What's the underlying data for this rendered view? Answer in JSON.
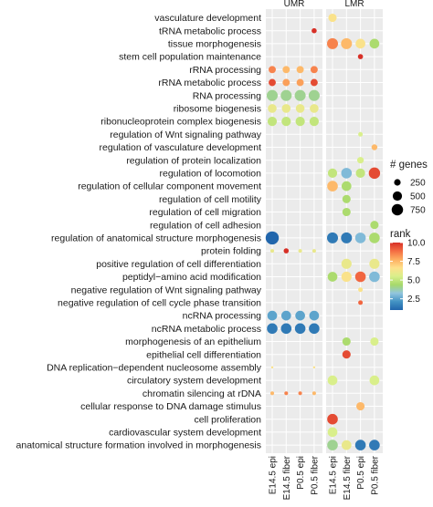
{
  "chart_data": {
    "type": "dotplot",
    "facets": [
      "UMR",
      "LMR"
    ],
    "samples": [
      "E14.5 epi",
      "E14.5 fiber",
      "P0.5 epi",
      "P0.5 fiber"
    ],
    "terms": [
      "vasculature development",
      "tRNA metabolic process",
      "tissue morphogenesis",
      "stem cell population maintenance",
      "rRNA processing",
      "rRNA metabolic process",
      "RNA processing",
      "ribosome biogenesis",
      "ribonucleoprotein complex biogenesis",
      "regulation of Wnt signaling pathway",
      "regulation of vasculature development",
      "regulation of protein localization",
      "regulation of locomotion",
      "regulation of cellular component movement",
      "regulation of cell motility",
      "regulation of cell migration",
      "regulation of cell adhesion",
      "regulation of anatomical structure morphogenesis",
      "protein folding",
      "positive regulation of cell differentiation",
      "peptidyl−amino acid modification",
      "negative regulation of Wnt signaling pathway",
      "negative regulation of cell cycle phase transition",
      "ncRNA processing",
      "ncRNA metabolic process",
      "morphogenesis of an epithelium",
      "epithelial cell differentiation",
      "DNA replication−dependent nucleosome assembly",
      "circulatory system development",
      "chromatin silencing at rDNA",
      "cellular response to DNA damage stimulus",
      "cell proliferation",
      "cardiovascular system development",
      "anatomical structure formation involved in morphogenesis"
    ],
    "size_legend": {
      "title": "# genes",
      "values": [
        250,
        500,
        750
      ]
    },
    "color_legend": {
      "title": "rank",
      "ticks": [
        2.5,
        5.0,
        7.5,
        10.0
      ],
      "range": [
        1,
        10
      ],
      "colors": [
        "#2166ac",
        "#4393c3",
        "#92c5de",
        "#a6d96a",
        "#d9ef8b",
        "#fee08b",
        "#fdae61",
        "#f46d43",
        "#d73027"
      ]
    },
    "points": [
      {
        "facet": "UMR",
        "sample": 3,
        "term": 1,
        "genes": 150,
        "rank": 10
      },
      {
        "facet": "UMR",
        "sample": 0,
        "term": 4,
        "genes": 300,
        "rank": 8.5
      },
      {
        "facet": "UMR",
        "sample": 1,
        "term": 4,
        "genes": 300,
        "rank": 7.5
      },
      {
        "facet": "UMR",
        "sample": 2,
        "term": 4,
        "genes": 300,
        "rank": 7.5
      },
      {
        "facet": "UMR",
        "sample": 3,
        "term": 4,
        "genes": 300,
        "rank": 8.5
      },
      {
        "facet": "UMR",
        "sample": 0,
        "term": 5,
        "genes": 300,
        "rank": 9.5
      },
      {
        "facet": "UMR",
        "sample": 1,
        "term": 5,
        "genes": 300,
        "rank": 8
      },
      {
        "facet": "UMR",
        "sample": 2,
        "term": 5,
        "genes": 300,
        "rank": 8
      },
      {
        "facet": "UMR",
        "sample": 3,
        "term": 5,
        "genes": 300,
        "rank": 9.5
      },
      {
        "facet": "UMR",
        "sample": 0,
        "term": 6,
        "genes": 700,
        "rank": 4
      },
      {
        "facet": "UMR",
        "sample": 1,
        "term": 6,
        "genes": 700,
        "rank": 4
      },
      {
        "facet": "UMR",
        "sample": 2,
        "term": 6,
        "genes": 700,
        "rank": 4
      },
      {
        "facet": "UMR",
        "sample": 3,
        "term": 6,
        "genes": 700,
        "rank": 4
      },
      {
        "facet": "UMR",
        "sample": 0,
        "term": 7,
        "genes": 450,
        "rank": 6
      },
      {
        "facet": "UMR",
        "sample": 1,
        "term": 7,
        "genes": 450,
        "rank": 6
      },
      {
        "facet": "UMR",
        "sample": 2,
        "term": 7,
        "genes": 450,
        "rank": 6
      },
      {
        "facet": "UMR",
        "sample": 3,
        "term": 7,
        "genes": 450,
        "rank": 6
      },
      {
        "facet": "UMR",
        "sample": 0,
        "term": 8,
        "genes": 500,
        "rank": 5
      },
      {
        "facet": "UMR",
        "sample": 1,
        "term": 8,
        "genes": 500,
        "rank": 5
      },
      {
        "facet": "UMR",
        "sample": 2,
        "term": 8,
        "genes": 500,
        "rank": 5
      },
      {
        "facet": "UMR",
        "sample": 3,
        "term": 8,
        "genes": 500,
        "rank": 5
      },
      {
        "facet": "UMR",
        "sample": 0,
        "term": 17,
        "genes": 1000,
        "rank": 1
      },
      {
        "facet": "UMR",
        "sample": 0,
        "term": 18,
        "genes": 80,
        "rank": 6
      },
      {
        "facet": "UMR",
        "sample": 1,
        "term": 18,
        "genes": 150,
        "rank": 10
      },
      {
        "facet": "UMR",
        "sample": 2,
        "term": 18,
        "genes": 80,
        "rank": 6
      },
      {
        "facet": "UMR",
        "sample": 3,
        "term": 18,
        "genes": 80,
        "rank": 6
      },
      {
        "facet": "UMR",
        "sample": 0,
        "term": 23,
        "genes": 550,
        "rank": 2.5
      },
      {
        "facet": "UMR",
        "sample": 1,
        "term": 23,
        "genes": 550,
        "rank": 2.5
      },
      {
        "facet": "UMR",
        "sample": 2,
        "term": 23,
        "genes": 550,
        "rank": 2.5
      },
      {
        "facet": "UMR",
        "sample": 3,
        "term": 23,
        "genes": 550,
        "rank": 2.5
      },
      {
        "facet": "UMR",
        "sample": 0,
        "term": 24,
        "genes": 650,
        "rank": 1.5
      },
      {
        "facet": "UMR",
        "sample": 1,
        "term": 24,
        "genes": 650,
        "rank": 1.5
      },
      {
        "facet": "UMR",
        "sample": 2,
        "term": 24,
        "genes": 650,
        "rank": 1.5
      },
      {
        "facet": "UMR",
        "sample": 3,
        "term": 24,
        "genes": 650,
        "rank": 1.5
      },
      {
        "facet": "UMR",
        "sample": 0,
        "term": 27,
        "genes": 30,
        "rank": 6.5
      },
      {
        "facet": "UMR",
        "sample": 3,
        "term": 27,
        "genes": 30,
        "rank": 6.5
      },
      {
        "facet": "UMR",
        "sample": 0,
        "term": 29,
        "genes": 80,
        "rank": 7.5
      },
      {
        "facet": "UMR",
        "sample": 1,
        "term": 29,
        "genes": 80,
        "rank": 8.5
      },
      {
        "facet": "UMR",
        "sample": 2,
        "term": 29,
        "genes": 80,
        "rank": 8.5
      },
      {
        "facet": "UMR",
        "sample": 3,
        "term": 29,
        "genes": 80,
        "rank": 7.5
      },
      {
        "facet": "LMR",
        "sample": 0,
        "term": 0,
        "genes": 400,
        "rank": 6.5
      },
      {
        "facet": "LMR",
        "sample": 0,
        "term": 2,
        "genes": 700,
        "rank": 8.5
      },
      {
        "facet": "LMR",
        "sample": 1,
        "term": 2,
        "genes": 700,
        "rank": 7.5
      },
      {
        "facet": "LMR",
        "sample": 2,
        "term": 2,
        "genes": 550,
        "rank": 6.5
      },
      {
        "facet": "LMR",
        "sample": 3,
        "term": 2,
        "genes": 550,
        "rank": 4.5
      },
      {
        "facet": "LMR",
        "sample": 2,
        "term": 3,
        "genes": 150,
        "rank": 10
      },
      {
        "facet": "LMR",
        "sample": 2,
        "term": 9,
        "genes": 120,
        "rank": 5.5
      },
      {
        "facet": "LMR",
        "sample": 3,
        "term": 10,
        "genes": 200,
        "rank": 7.5
      },
      {
        "facet": "LMR",
        "sample": 2,
        "term": 11,
        "genes": 250,
        "rank": 5.5
      },
      {
        "facet": "LMR",
        "sample": 0,
        "term": 12,
        "genes": 500,
        "rank": 5
      },
      {
        "facet": "LMR",
        "sample": 1,
        "term": 12,
        "genes": 650,
        "rank": 3
      },
      {
        "facet": "LMR",
        "sample": 2,
        "term": 12,
        "genes": 500,
        "rank": 5
      },
      {
        "facet": "LMR",
        "sample": 3,
        "term": 12,
        "genes": 750,
        "rank": 9.5
      },
      {
        "facet": "LMR",
        "sample": 0,
        "term": 13,
        "genes": 650,
        "rank": 7.5
      },
      {
        "facet": "LMR",
        "sample": 1,
        "term": 13,
        "genes": 550,
        "rank": 4.5
      },
      {
        "facet": "LMR",
        "sample": 1,
        "term": 14,
        "genes": 400,
        "rank": 4.5
      },
      {
        "facet": "LMR",
        "sample": 1,
        "term": 15,
        "genes": 400,
        "rank": 4.5
      },
      {
        "facet": "LMR",
        "sample": 3,
        "term": 16,
        "genes": 400,
        "rank": 4.5
      },
      {
        "facet": "LMR",
        "sample": 0,
        "term": 17,
        "genes": 700,
        "rank": 1.5
      },
      {
        "facet": "LMR",
        "sample": 1,
        "term": 17,
        "genes": 700,
        "rank": 1.5
      },
      {
        "facet": "LMR",
        "sample": 2,
        "term": 17,
        "genes": 650,
        "rank": 3
      },
      {
        "facet": "LMR",
        "sample": 3,
        "term": 17,
        "genes": 650,
        "rank": 4.5
      },
      {
        "facet": "LMR",
        "sample": 1,
        "term": 19,
        "genes": 600,
        "rank": 6
      },
      {
        "facet": "LMR",
        "sample": 3,
        "term": 19,
        "genes": 600,
        "rank": 6
      },
      {
        "facet": "LMR",
        "sample": 0,
        "term": 20,
        "genes": 550,
        "rank": 4.5
      },
      {
        "facet": "LMR",
        "sample": 1,
        "term": 20,
        "genes": 600,
        "rank": 6.5
      },
      {
        "facet": "LMR",
        "sample": 2,
        "term": 20,
        "genes": 650,
        "rank": 9
      },
      {
        "facet": "LMR",
        "sample": 3,
        "term": 20,
        "genes": 650,
        "rank": 3
      },
      {
        "facet": "LMR",
        "sample": 2,
        "term": 21,
        "genes": 120,
        "rank": 6.5
      },
      {
        "facet": "LMR",
        "sample": 2,
        "term": 22,
        "genes": 120,
        "rank": 9
      },
      {
        "facet": "LMR",
        "sample": 1,
        "term": 25,
        "genes": 400,
        "rank": 4.5
      },
      {
        "facet": "LMR",
        "sample": 3,
        "term": 25,
        "genes": 400,
        "rank": 5.5
      },
      {
        "facet": "LMR",
        "sample": 1,
        "term": 26,
        "genes": 400,
        "rank": 9.5
      },
      {
        "facet": "LMR",
        "sample": 0,
        "term": 28,
        "genes": 550,
        "rank": 5.5
      },
      {
        "facet": "LMR",
        "sample": 3,
        "term": 28,
        "genes": 550,
        "rank": 5.5
      },
      {
        "facet": "LMR",
        "sample": 2,
        "term": 30,
        "genes": 400,
        "rank": 7.5
      },
      {
        "facet": "LMR",
        "sample": 0,
        "term": 31,
        "genes": 650,
        "rank": 9.5
      },
      {
        "facet": "LMR",
        "sample": 0,
        "term": 32,
        "genes": 550,
        "rank": 5.5
      },
      {
        "facet": "LMR",
        "sample": 0,
        "term": 33,
        "genes": 650,
        "rank": 4
      },
      {
        "facet": "LMR",
        "sample": 1,
        "term": 33,
        "genes": 550,
        "rank": 6
      },
      {
        "facet": "LMR",
        "sample": 2,
        "term": 33,
        "genes": 650,
        "rank": 1.5
      },
      {
        "facet": "LMR",
        "sample": 3,
        "term": 33,
        "genes": 650,
        "rank": 1.5
      }
    ]
  }
}
